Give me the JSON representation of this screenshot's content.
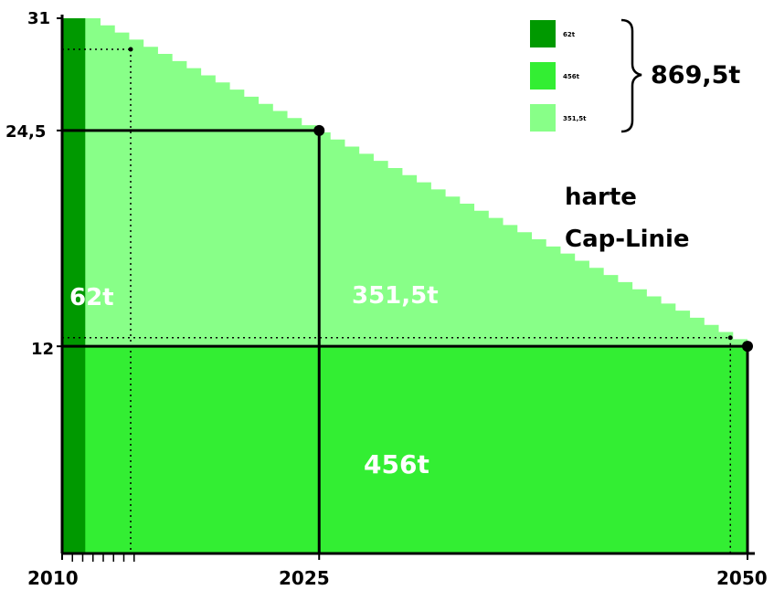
{
  "chart_data": {
    "type": "area",
    "title": "",
    "x_ticks": [
      "2010",
      "2025",
      "2050"
    ],
    "y_ticks": [
      "31",
      "24,5",
      "12"
    ],
    "xlim": [
      2010,
      2050
    ],
    "ylim": [
      0,
      31
    ],
    "x": [
      2010,
      2025,
      2050
    ],
    "hard_cap_points": [
      {
        "x": 2025,
        "y": 24.5
      },
      {
        "x": 2050,
        "y": 12
      }
    ],
    "series": [
      {
        "name": "62t",
        "value": 62,
        "color": "#009900"
      },
      {
        "name": "456t",
        "value": 456,
        "color": "#33ee33"
      },
      {
        "name": "351,5t",
        "value": 351.5,
        "color": "#88ff88"
      }
    ],
    "region_labels": [
      "62t",
      "351,5t",
      "456t"
    ],
    "total": "869,5t",
    "annotation": "harte\nCap-Linie",
    "annotation_lines": [
      "harte",
      "Cap-Linie"
    ]
  }
}
